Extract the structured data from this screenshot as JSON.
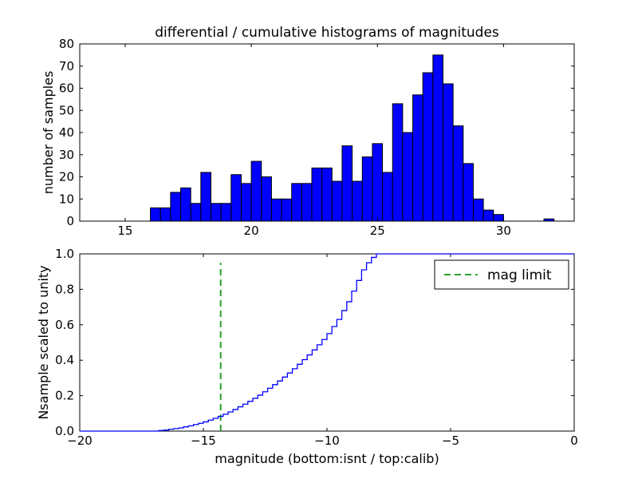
{
  "chart_data": [
    {
      "type": "bar",
      "title": "differential / cumulative histograms of magnitudes",
      "xlabel": "",
      "ylabel": "number of samples",
      "xlim": [
        13.2,
        32.8
      ],
      "ylim": [
        0,
        80
      ],
      "xticks": [
        15,
        20,
        25,
        30
      ],
      "xticklabels": [
        "15",
        "20",
        "25",
        "30"
      ],
      "yticks": [
        0,
        10,
        20,
        30,
        40,
        50,
        60,
        70,
        80
      ],
      "yticklabels": [
        "0",
        "10",
        "20",
        "30",
        "40",
        "50",
        "60",
        "70",
        "80"
      ],
      "bar_color": "#0000ff",
      "bar_edge": "#000000",
      "bins": {
        "start": 16.0,
        "width": 0.4
      },
      "counts": [
        6,
        6,
        13,
        15,
        8,
        22,
        8,
        8,
        21,
        17,
        27,
        20,
        10,
        10,
        17,
        17,
        24,
        24,
        18,
        34,
        18,
        29,
        35,
        22,
        53,
        40,
        57,
        67,
        75,
        62,
        43,
        26,
        10,
        5,
        3,
        0,
        0,
        0,
        0,
        1
      ]
    },
    {
      "type": "line",
      "style": "step-cumulative",
      "xlabel": "magnitude (bottom:isnt / top:calib)",
      "ylabel": "Nsample scaled to unity",
      "xlim": [
        -20,
        0
      ],
      "ylim": [
        0,
        1
      ],
      "xticks": [
        -20,
        -15,
        -10,
        -5,
        0
      ],
      "xticklabels": [
        "−20",
        "−15",
        "−10",
        "−5",
        "0"
      ],
      "yticks": [
        0,
        0.2,
        0.4,
        0.6,
        0.8,
        1.0
      ],
      "yticklabels": [
        "0.0",
        "0.2",
        "0.4",
        "0.6",
        "0.8",
        "1.0"
      ],
      "line_color": "#0000ff",
      "mag_limit": {
        "x": -14.3,
        "label": "mag limit",
        "color": "#2ca02c",
        "linestyle": "dashed"
      },
      "legend": {
        "label": "mag limit",
        "position": "upper right"
      },
      "step_points": [
        [
          -16.8,
          0.003
        ],
        [
          -16.6,
          0.006
        ],
        [
          -16.4,
          0.01
        ],
        [
          -16.2,
          0.014
        ],
        [
          -16.0,
          0.018
        ],
        [
          -15.8,
          0.024
        ],
        [
          -15.6,
          0.03
        ],
        [
          -15.4,
          0.037
        ],
        [
          -15.2,
          0.044
        ],
        [
          -15.0,
          0.052
        ],
        [
          -14.8,
          0.062
        ],
        [
          -14.6,
          0.072
        ],
        [
          -14.4,
          0.083
        ],
        [
          -14.2,
          0.095
        ],
        [
          -14.0,
          0.108
        ],
        [
          -13.8,
          0.122
        ],
        [
          -13.6,
          0.137
        ],
        [
          -13.4,
          0.152
        ],
        [
          -13.2,
          0.168
        ],
        [
          -13.0,
          0.185
        ],
        [
          -12.8,
          0.203
        ],
        [
          -12.6,
          0.222
        ],
        [
          -12.4,
          0.242
        ],
        [
          -12.2,
          0.262
        ],
        [
          -12.0,
          0.283
        ],
        [
          -11.8,
          0.305
        ],
        [
          -11.6,
          0.328
        ],
        [
          -11.4,
          0.352
        ],
        [
          -11.2,
          0.377
        ],
        [
          -11.0,
          0.403
        ],
        [
          -10.8,
          0.43
        ],
        [
          -10.6,
          0.458
        ],
        [
          -10.4,
          0.487
        ],
        [
          -10.2,
          0.517
        ],
        [
          -10.0,
          0.55
        ],
        [
          -9.8,
          0.59
        ],
        [
          -9.6,
          0.63
        ],
        [
          -9.4,
          0.68
        ],
        [
          -9.2,
          0.73
        ],
        [
          -9.0,
          0.79
        ],
        [
          -8.8,
          0.85
        ],
        [
          -8.6,
          0.91
        ],
        [
          -8.4,
          0.95
        ],
        [
          -8.2,
          0.98
        ],
        [
          -8.0,
          1.0
        ],
        [
          0,
          1.0
        ]
      ]
    }
  ]
}
